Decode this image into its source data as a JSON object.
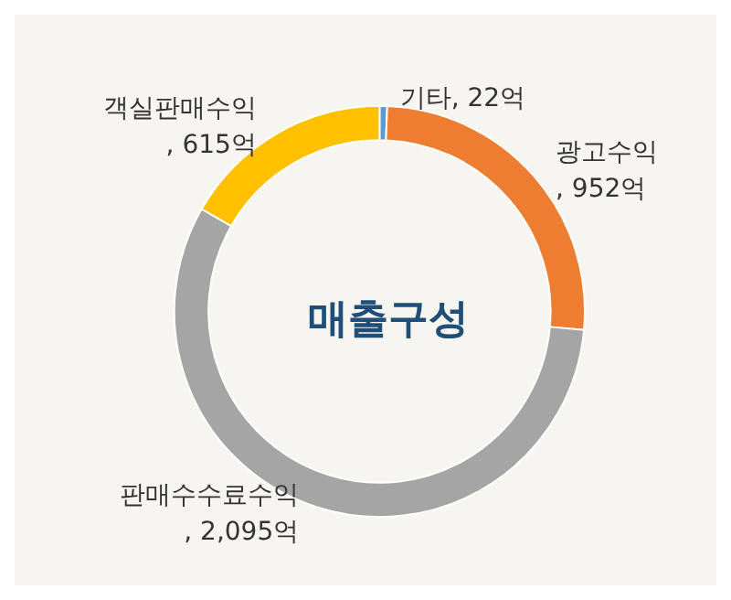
{
  "chart_data": {
    "type": "donut",
    "title": "매출구성",
    "categories": [
      "기타",
      "광고수익",
      "판매수수료수익",
      "객실판매수익"
    ],
    "values": [
      22,
      952,
      2095,
      615
    ],
    "value_labels": [
      ", 22억",
      ", 952억",
      ", 2,095억",
      ", 615억"
    ],
    "colors": [
      "#5b9bd5",
      "#ed7d31",
      "#a5a5a5",
      "#ffc000"
    ],
    "legend": false
  }
}
